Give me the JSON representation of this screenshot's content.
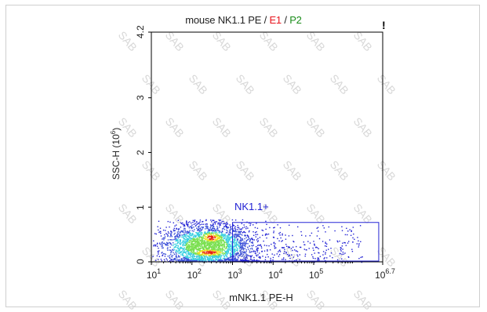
{
  "title": {
    "prefix": "mouse NK1.1 PE",
    "sep1": " / ",
    "gate1": "E1",
    "sep2": " / ",
    "gate2": "P2"
  },
  "corner_mark": "!",
  "watermark": "SAB",
  "colors": {
    "gate": "#2323d4",
    "gate1": "#e8141c",
    "gate2": "#1a8c1a",
    "scatter_points": "#2323d4",
    "density_low": "#3a4fd8",
    "density_mid": "#3ad0e0",
    "density_high": "#f0e020",
    "density_peak": "#e82010"
  },
  "chart_data": {
    "type": "scatter",
    "title": "mouse NK1.1 PE / E1 / P2",
    "xlabel": "mNK1.1 PE-H",
    "ylabel_main": "SSC-H (10",
    "ylabel_exp": "6",
    "ylabel_end": ")",
    "x_scale": "log",
    "x_range": [
      10,
      5011872
    ],
    "y_range": [
      0,
      4.2
    ],
    "x_ticks": [
      {
        "base": "10",
        "exp": "1",
        "value": 10
      },
      {
        "base": "10",
        "exp": "2",
        "value": 100
      },
      {
        "base": "10",
        "exp": "3",
        "value": 1000
      },
      {
        "base": "10",
        "exp": "4",
        "value": 10000
      },
      {
        "base": "10",
        "exp": "5",
        "value": 100000
      },
      {
        "base": "10",
        "exp": "6.7",
        "value": 5011872
      }
    ],
    "y_ticks": [
      "0",
      "1",
      "2",
      "3",
      "4.2"
    ],
    "y_tick_values": [
      0,
      1,
      2,
      3,
      4.2
    ],
    "grid": false,
    "gate": {
      "name": "NK1.1+",
      "x_range": [
        1000,
        4000000
      ],
      "y_range": [
        0.0,
        0.72
      ]
    },
    "populations": [
      {
        "name": "main cluster",
        "x_center": 220,
        "y_center": 0.3,
        "x_spread_decades": 0.55,
        "y_spread": 0.22
      },
      {
        "name": "low SSC hotspot",
        "x_center": 260,
        "y_center": 0.18,
        "x_spread_decades": 0.3,
        "y_spread": 0.05
      },
      {
        "name": "high SSC hotspot",
        "x_center": 300,
        "y_center": 0.45,
        "x_spread_decades": 0.2,
        "y_spread": 0.07
      }
    ]
  }
}
